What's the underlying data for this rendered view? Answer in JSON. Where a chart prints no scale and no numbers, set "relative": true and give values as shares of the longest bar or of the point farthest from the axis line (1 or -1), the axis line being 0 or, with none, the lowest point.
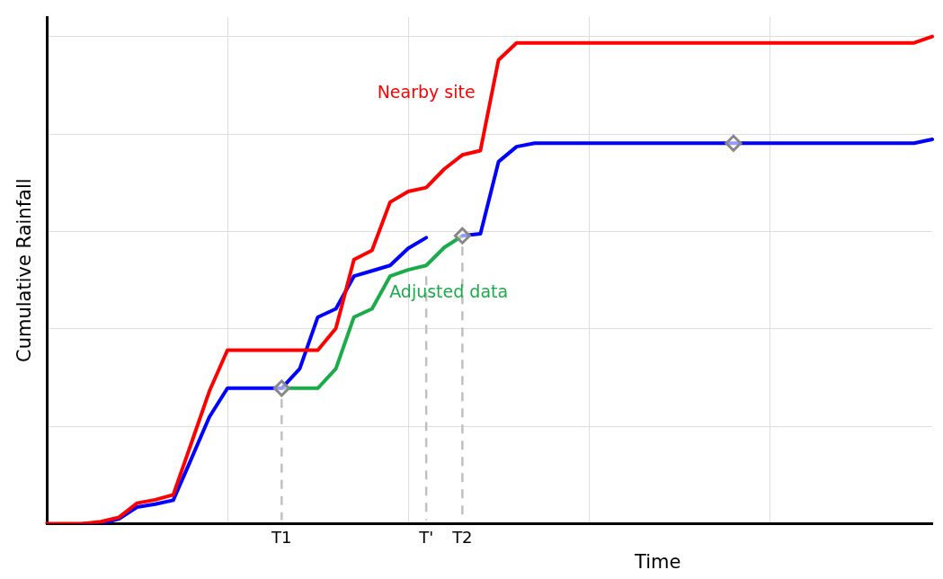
{
  "chart_data": {
    "type": "line",
    "relative": true,
    "xlabel": "Time",
    "ylabel": "Cumulative Rainfall",
    "categories": [
      null,
      null,
      null,
      null,
      null,
      null,
      null,
      null,
      null,
      null,
      null,
      null,
      null,
      "T1",
      null,
      null,
      null,
      null,
      null,
      null,
      null,
      "T'",
      null,
      "T2",
      null,
      null,
      null,
      null,
      null,
      null,
      null,
      null,
      null,
      null,
      null,
      null,
      null,
      null,
      null,
      null,
      null,
      null,
      null,
      null,
      null,
      null,
      null,
      null,
      null,
      null
    ],
    "series": [
      {
        "name": "Nearby site",
        "color": "#ff0000",
        "values": [
          0,
          0,
          0,
          0.004,
          0.013,
          0.042,
          0.049,
          0.059,
          0.165,
          0.272,
          0.356,
          0.356,
          0.356,
          0.356,
          0.356,
          0.356,
          0.401,
          0.542,
          0.561,
          0.66,
          0.682,
          0.69,
          0.728,
          0.757,
          0.766,
          0.952,
          0.987,
          0.987,
          0.987,
          0.987,
          0.987,
          0.987,
          0.987,
          0.987,
          0.987,
          0.987,
          0.987,
          0.987,
          0.987,
          0.987,
          0.987,
          0.987,
          0.987,
          0.987,
          0.987,
          0.987,
          0.987,
          0.987,
          0.987,
          1
        ]
      },
      {
        "color": "#0000ff",
        "values": [
          null,
          null,
          0,
          0,
          0.01,
          0.034,
          0.04,
          0.048,
          0.133,
          0.219,
          0.278,
          0.278,
          0.278,
          0.278,
          0.318,
          0.424,
          0.441,
          0.508,
          0.519,
          0.53,
          0.565,
          0.587,
          null,
          0.591,
          0.595,
          0.743,
          0.774,
          0.781,
          0.781,
          0.781,
          0.781,
          0.781,
          0.781,
          0.781,
          0.781,
          0.781,
          0.781,
          0.781,
          0.781,
          0.781,
          0.781,
          0.781,
          0.781,
          0.781,
          0.781,
          0.781,
          0.781,
          0.781,
          0.781,
          0.789
        ]
      },
      {
        "name": "Adjusted data",
        "color": "#1aab4b",
        "values": [
          null,
          null,
          null,
          null,
          null,
          null,
          null,
          null,
          null,
          null,
          null,
          null,
          null,
          0.278,
          0.278,
          0.278,
          0.318,
          0.424,
          0.441,
          0.508,
          0.521,
          0.53,
          0.567,
          0.591,
          null,
          null,
          null,
          null,
          null,
          null,
          null,
          null,
          null,
          null,
          null,
          null,
          null,
          null,
          null,
          null,
          null,
          null,
          null,
          null,
          null,
          null,
          null,
          null,
          null,
          null
        ]
      },
      {
        "type": "scatter",
        "marker": "diamond",
        "color": "#888888",
        "values": [
          null,
          null,
          null,
          null,
          null,
          null,
          null,
          null,
          null,
          null,
          null,
          null,
          null,
          0.278,
          null,
          null,
          null,
          null,
          null,
          null,
          null,
          null,
          null,
          0.591,
          null,
          null,
          null,
          null,
          null,
          null,
          null,
          null,
          null,
          null,
          null,
          null,
          null,
          null,
          0.781,
          null,
          null,
          null,
          null,
          null,
          null,
          null,
          null,
          null,
          null,
          null
        ]
      }
    ],
    "ref_lines": [
      {
        "axis": "x",
        "value": "T1",
        "color": "#c0c0c0",
        "line_style": "dashed"
      },
      {
        "axis": "x",
        "value": "T'",
        "color": "#c0c0c0",
        "line_style": "dashed"
      },
      {
        "axis": "x",
        "value": "T2",
        "color": "#c0c0c0",
        "line_style": "dashed"
      }
    ],
    "grid": true,
    "legend": false,
    "tick_labels": "x",
    "marker": "none",
    "line_style": "solid"
  }
}
